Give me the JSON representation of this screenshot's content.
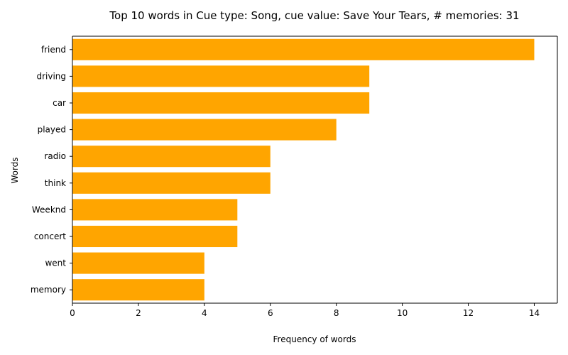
{
  "chart_data": {
    "type": "bar",
    "orientation": "horizontal",
    "title": "Top 10 words in Cue type: Song, cue value: Save Your Tears, # memories: 31",
    "xlabel": "Frequency of words",
    "ylabel": "Words",
    "categories": [
      "friend",
      "driving",
      "car",
      "played",
      "radio",
      "think",
      "Weeknd",
      "concert",
      "went",
      "memory"
    ],
    "values": [
      14,
      9,
      9,
      8,
      6,
      6,
      5,
      5,
      4,
      4
    ],
    "xlim": [
      0,
      14.7
    ],
    "xticks": [
      0,
      2,
      4,
      6,
      8,
      10,
      12,
      14
    ],
    "bar_color": "#FFA500",
    "grid": false,
    "legend": "none"
  }
}
